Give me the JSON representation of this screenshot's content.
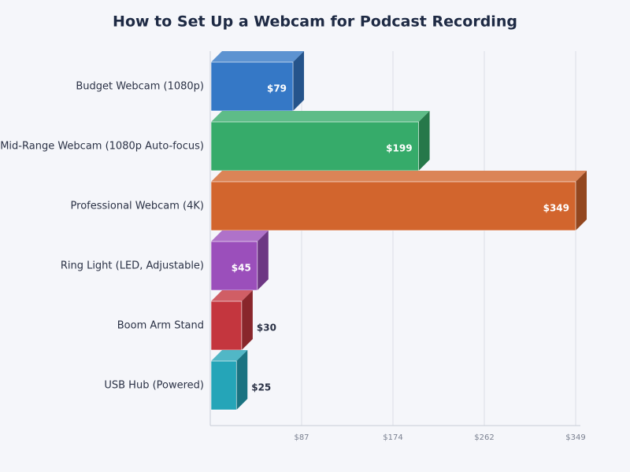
{
  "chart_data": {
    "type": "bar",
    "orientation": "horizontal",
    "title": "How to Set Up a Webcam for Podcast Recording",
    "categories": [
      "Budget Webcam (1080p)",
      "Mid-Range Webcam (1080p Auto-focus)",
      "Professional Webcam (4K)",
      "Ring Light (LED, Adjustable)",
      "Boom Arm Stand",
      "USB Hub (Powered)"
    ],
    "values": [
      79,
      199,
      349,
      45,
      30,
      25
    ],
    "value_labels": [
      "$79",
      "$199",
      "$349",
      "$45",
      "$30",
      "$25"
    ],
    "colors": [
      "#3578c6",
      "#36ab6a",
      "#d2652d",
      "#9b4fbb",
      "#c4363e",
      "#25a5b8"
    ],
    "xlim": [
      0,
      349
    ],
    "xticks": [
      {
        "value": 87.25,
        "label": "$87"
      },
      {
        "value": 174.5,
        "label": "$174"
      },
      {
        "value": 261.75,
        "label": "$262"
      },
      {
        "value": 349,
        "label": "$349"
      }
    ],
    "grid": true
  }
}
